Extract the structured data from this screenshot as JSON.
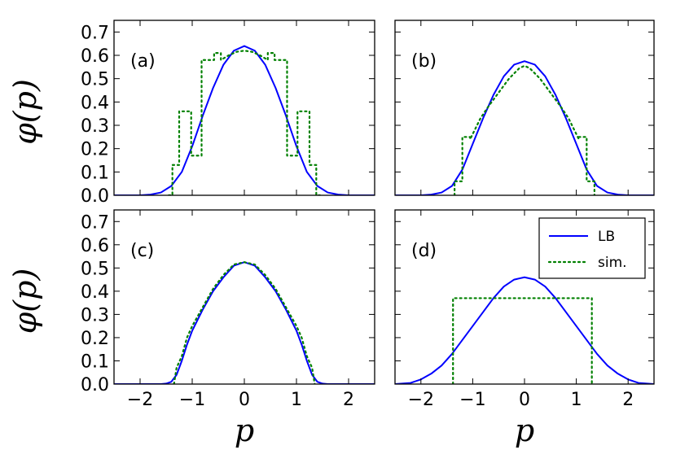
{
  "chart_data": [
    {
      "type": "line",
      "panel": "(a)",
      "xlabel": "",
      "ylabel": "φ(p)",
      "xlim": [
        -2.5,
        2.5
      ],
      "ylim": [
        0,
        0.75
      ],
      "x_ticks": [],
      "y_ticks": [
        "0.0",
        "0.1",
        "0.2",
        "0.3",
        "0.4",
        "0.5",
        "0.6",
        "0.7"
      ],
      "series": [
        {
          "name": "LB",
          "style": "solid",
          "color": "#0000ff",
          "x": [
            -2.5,
            -2.0,
            -1.8,
            -1.6,
            -1.4,
            -1.2,
            -1.0,
            -0.8,
            -0.6,
            -0.4,
            -0.2,
            0.0,
            0.2,
            0.4,
            0.6,
            0.8,
            1.0,
            1.2,
            1.4,
            1.6,
            1.8,
            2.0,
            2.5
          ],
          "y": [
            0.0,
            0.0,
            0.003,
            0.012,
            0.04,
            0.1,
            0.21,
            0.34,
            0.46,
            0.56,
            0.62,
            0.64,
            0.62,
            0.56,
            0.46,
            0.34,
            0.21,
            0.1,
            0.04,
            0.012,
            0.003,
            0.0,
            0.0
          ]
        },
        {
          "name": "sim.",
          "style": "dotted",
          "color": "#008000",
          "x": [
            -1.45,
            -1.38,
            -1.38,
            -1.25,
            -1.25,
            -1.02,
            -1.02,
            -0.82,
            -0.82,
            -0.58,
            -0.58,
            -0.45,
            -0.45,
            -0.3,
            -0.15,
            0.0,
            0.15,
            0.3,
            0.45,
            0.45,
            0.58,
            0.58,
            0.82,
            0.82,
            1.02,
            1.02,
            1.25,
            1.25,
            1.38,
            1.38,
            1.45
          ],
          "y": [
            0.0,
            0.0,
            0.13,
            0.13,
            0.36,
            0.36,
            0.17,
            0.17,
            0.58,
            0.58,
            0.61,
            0.61,
            0.58,
            0.6,
            0.615,
            0.62,
            0.615,
            0.6,
            0.58,
            0.61,
            0.61,
            0.58,
            0.58,
            0.17,
            0.17,
            0.36,
            0.36,
            0.13,
            0.13,
            0.0,
            0.0
          ]
        }
      ]
    },
    {
      "type": "line",
      "panel": "(b)",
      "xlabel": "",
      "ylabel": "",
      "xlim": [
        -2.5,
        2.5
      ],
      "ylim": [
        0,
        0.75
      ],
      "x_ticks": [],
      "y_ticks": [],
      "series": [
        {
          "name": "LB",
          "style": "solid",
          "color": "#0000ff",
          "x": [
            -2.5,
            -2.0,
            -1.8,
            -1.6,
            -1.4,
            -1.2,
            -1.0,
            -0.8,
            -0.6,
            -0.4,
            -0.2,
            0.0,
            0.2,
            0.4,
            0.6,
            0.8,
            1.0,
            1.2,
            1.4,
            1.6,
            1.8,
            2.0,
            2.5
          ],
          "y": [
            0.0,
            0.0,
            0.003,
            0.012,
            0.04,
            0.11,
            0.22,
            0.33,
            0.43,
            0.51,
            0.56,
            0.575,
            0.56,
            0.51,
            0.43,
            0.33,
            0.22,
            0.11,
            0.04,
            0.012,
            0.003,
            0.0,
            0.0
          ]
        },
        {
          "name": "sim.",
          "style": "dotted",
          "color": "#008000",
          "x": [
            -1.35,
            -1.35,
            -1.2,
            -1.2,
            -1.05,
            -1.05,
            -0.85,
            -0.7,
            -0.5,
            -0.3,
            -0.1,
            0.0,
            0.1,
            0.3,
            0.5,
            0.7,
            0.85,
            1.05,
            1.05,
            1.2,
            1.2,
            1.35,
            1.35
          ],
          "y": [
            0.0,
            0.06,
            0.06,
            0.25,
            0.25,
            0.24,
            0.33,
            0.38,
            0.44,
            0.5,
            0.545,
            0.555,
            0.545,
            0.5,
            0.44,
            0.38,
            0.33,
            0.24,
            0.25,
            0.25,
            0.06,
            0.06,
            0.0
          ]
        }
      ]
    },
    {
      "type": "line",
      "panel": "(c)",
      "xlabel": "p",
      "ylabel": "φ(p)",
      "xlim": [
        -2.5,
        2.5
      ],
      "ylim": [
        0,
        0.75
      ],
      "x_ticks": [
        "−2",
        "−1",
        "0",
        "1",
        "2"
      ],
      "y_ticks": [
        "0.0",
        "0.1",
        "0.2",
        "0.3",
        "0.4",
        "0.5",
        "0.6",
        "0.7"
      ],
      "series": [
        {
          "name": "LB",
          "style": "solid",
          "color": "#0000ff",
          "x": [
            -2.5,
            -1.6,
            -1.5,
            -1.4,
            -1.3,
            -1.2,
            -1.1,
            -1.0,
            -0.8,
            -0.6,
            -0.4,
            -0.2,
            0.0,
            0.2,
            0.4,
            0.6,
            0.8,
            1.0,
            1.1,
            1.2,
            1.3,
            1.4,
            1.5,
            1.6,
            2.5
          ],
          "y": [
            0.0,
            0.0,
            0.002,
            0.01,
            0.04,
            0.1,
            0.17,
            0.23,
            0.32,
            0.4,
            0.46,
            0.51,
            0.525,
            0.51,
            0.46,
            0.4,
            0.32,
            0.23,
            0.17,
            0.1,
            0.04,
            0.01,
            0.002,
            0.0,
            0.0
          ]
        },
        {
          "name": "sim.",
          "style": "dotted",
          "color": "#008000",
          "x": [
            -1.35,
            -1.3,
            -1.2,
            -1.1,
            -1.0,
            -0.8,
            -0.6,
            -0.4,
            -0.2,
            0.0,
            0.2,
            0.4,
            0.6,
            0.8,
            1.0,
            1.1,
            1.2,
            1.3,
            1.35
          ],
          "y": [
            0.0,
            0.07,
            0.12,
            0.2,
            0.25,
            0.33,
            0.41,
            0.47,
            0.515,
            0.525,
            0.515,
            0.47,
            0.41,
            0.33,
            0.25,
            0.2,
            0.12,
            0.07,
            0.0
          ]
        }
      ]
    },
    {
      "type": "line",
      "panel": "(d)",
      "xlabel": "p",
      "ylabel": "",
      "xlim": [
        -2.5,
        2.5
      ],
      "ylim": [
        0,
        0.75
      ],
      "x_ticks": [
        "−2",
        "−1",
        "0",
        "1",
        "2"
      ],
      "y_ticks": [],
      "legend": {
        "placement": "top-right",
        "entries": [
          "LB",
          "sim."
        ]
      },
      "series": [
        {
          "name": "LB",
          "style": "solid",
          "color": "#0000ff",
          "x": [
            -2.5,
            -2.2,
            -2.0,
            -1.8,
            -1.6,
            -1.4,
            -1.2,
            -1.0,
            -0.8,
            -0.6,
            -0.4,
            -0.2,
            0.0,
            0.2,
            0.4,
            0.6,
            0.8,
            1.0,
            1.2,
            1.4,
            1.6,
            1.8,
            2.0,
            2.2,
            2.5
          ],
          "y": [
            0.0,
            0.005,
            0.02,
            0.045,
            0.08,
            0.13,
            0.19,
            0.25,
            0.31,
            0.37,
            0.42,
            0.45,
            0.46,
            0.45,
            0.42,
            0.37,
            0.31,
            0.25,
            0.19,
            0.13,
            0.08,
            0.045,
            0.02,
            0.005,
            0.0
          ]
        },
        {
          "name": "sim.",
          "style": "dotted",
          "color": "#008000",
          "x": [
            -1.38,
            -1.38,
            1.3,
            1.3
          ],
          "y": [
            0.0,
            0.37,
            0.37,
            0.0
          ]
        }
      ]
    }
  ]
}
